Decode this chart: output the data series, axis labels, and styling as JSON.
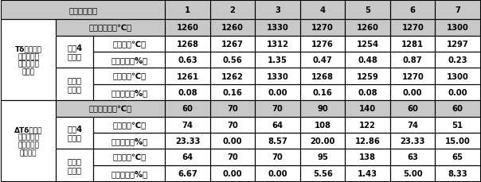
{
  "header_text": "实施例的序号",
  "col_numbers": [
    "1",
    "2",
    "3",
    "4",
    "5",
    "6",
    "7"
  ],
  "sec1_label": "Tδ（形成高\n温铁素体单\n相区的临界\n温度）",
  "sec2_label": "ΔTδ（奥氏\n体加高温铁\n素体两相区\n的宽度）",
  "exp_label": "实验测量値（℃）",
  "sub1_label": "文件4\n的方法",
  "sub2_label": "本发明\n的方法",
  "pred_label": "预测値（℃）",
  "err_label": "相对偏差（%）",
  "rows": {
    "r1_exp": [
      "1260",
      "1260",
      "1330",
      "1270",
      "1260",
      "1270",
      "1300"
    ],
    "r2_pred": [
      "1268",
      "1267",
      "1312",
      "1276",
      "1254",
      "1281",
      "1297"
    ],
    "r3_err": [
      "0.63",
      "0.56",
      "1.35",
      "0.47",
      "0.48",
      "0.87",
      "0.23"
    ],
    "r4_pred": [
      "1261",
      "1262",
      "1330",
      "1268",
      "1259",
      "1270",
      "1300"
    ],
    "r5_err": [
      "0.08",
      "0.16",
      "0.00",
      "0.16",
      "0.08",
      "0.00",
      "0.00"
    ],
    "r6_exp": [
      "60",
      "70",
      "70",
      "90",
      "140",
      "60",
      "60"
    ],
    "r7_pred": [
      "74",
      "70",
      "64",
      "108",
      "122",
      "74",
      "51"
    ],
    "r8_err": [
      "23.33",
      "0.00",
      "8.57",
      "20.00",
      "12.86",
      "23.33",
      "15.00"
    ],
    "r9_pred": [
      "64",
      "70",
      "70",
      "95",
      "138",
      "63",
      "65"
    ],
    "r10_err": [
      "6.67",
      "0.00",
      "0.00",
      "5.56",
      "1.43",
      "5.00",
      "8.33"
    ]
  },
  "header_bg": "#c8c8c8",
  "exp_bg": "#c8c8c8",
  "white_bg": "#ffffff",
  "border_color": "#000000",
  "text_color": "#000000"
}
